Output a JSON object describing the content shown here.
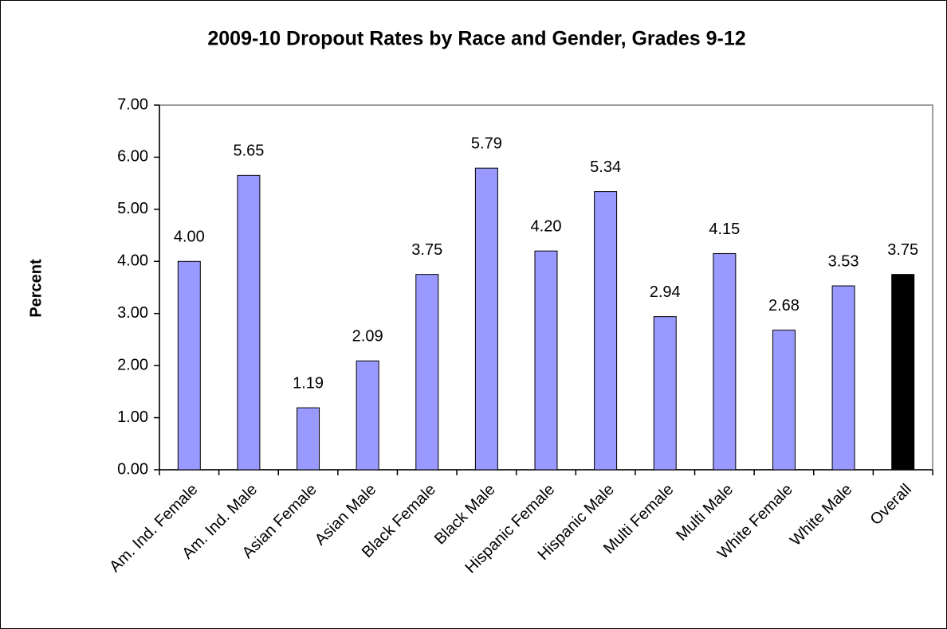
{
  "chart_data": {
    "type": "bar",
    "title": "2009-10 Dropout Rates by Race and Gender, Grades 9-12",
    "y_label": "Percent",
    "categories": [
      "Am. Ind. Female",
      "Am. Ind. Male",
      "Asian Female",
      "Asian Male",
      "Black Female",
      "Black Male",
      "Hispanic Female",
      "Hispanic Male",
      "Multi Female",
      "Multi Male",
      "White Female",
      "White Male",
      "Overall"
    ],
    "values": [
      4.0,
      5.65,
      1.19,
      2.09,
      3.75,
      5.79,
      4.2,
      5.34,
      2.94,
      4.15,
      2.68,
      3.53,
      3.75
    ],
    "value_labels": [
      "4.00",
      "5.65",
      "1.19",
      "2.09",
      "3.75",
      "5.79",
      "4.20",
      "5.34",
      "2.94",
      "4.15",
      "2.68",
      "3.53",
      "3.75"
    ],
    "colors": [
      "#9999ff",
      "#9999ff",
      "#9999ff",
      "#9999ff",
      "#9999ff",
      "#9999ff",
      "#9999ff",
      "#9999ff",
      "#9999ff",
      "#9999ff",
      "#9999ff",
      "#9999ff",
      "#000000"
    ],
    "ylim": [
      0,
      7
    ],
    "yticks": [
      {
        "value": 0,
        "label": "0.00"
      },
      {
        "value": 1,
        "label": "1.00"
      },
      {
        "value": 2,
        "label": "2.00"
      },
      {
        "value": 3,
        "label": "3.00"
      },
      {
        "value": 4,
        "label": "4.00"
      },
      {
        "value": 5,
        "label": "5.00"
      },
      {
        "value": 6,
        "label": "6.00"
      },
      {
        "value": 7,
        "label": "7.00"
      }
    ],
    "grid": false
  }
}
